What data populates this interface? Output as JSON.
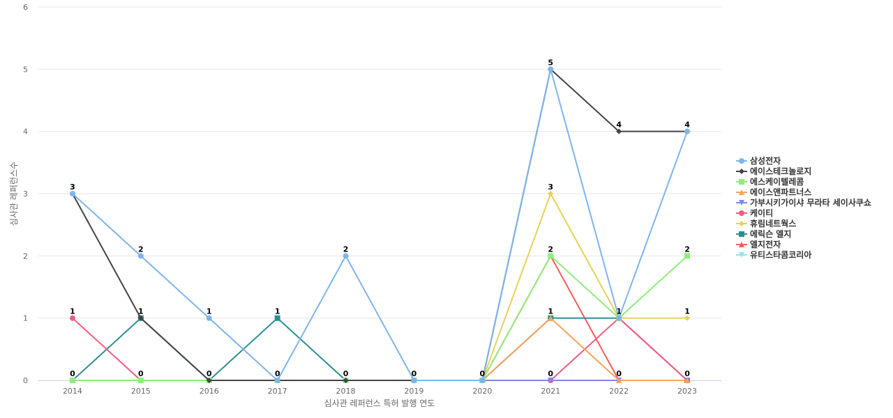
{
  "chart_data": {
    "type": "line",
    "title": "",
    "xlabel": "심사관 레퍼런스 특허 발행 연도",
    "ylabel": "심사관 레퍼런스수",
    "categories": [
      "2014",
      "2015",
      "2016",
      "2017",
      "2018",
      "2019",
      "2020",
      "2021",
      "2022",
      "2023"
    ],
    "ylim": [
      0,
      6
    ],
    "yticks": [
      0,
      1,
      2,
      3,
      4,
      5,
      6
    ],
    "grid": "horizontal",
    "legend": "right",
    "top_labels": [
      "3",
      "2",
      "1",
      "1",
      "2",
      "0",
      "0",
      "5",
      "4",
      "4"
    ],
    "annotations": [
      {
        "x": "2014",
        "y": 1,
        "text": "1"
      },
      {
        "x": "2014",
        "y": 0,
        "text": "0"
      },
      {
        "x": "2015",
        "y": 1,
        "text": "1"
      },
      {
        "x": "2015",
        "y": 0,
        "text": "0"
      },
      {
        "x": "2016",
        "y": 0,
        "text": "0"
      },
      {
        "x": "2017",
        "y": 0,
        "text": "0"
      },
      {
        "x": "2018",
        "y": 0,
        "text": "0"
      },
      {
        "x": "2021",
        "y": 3,
        "text": "3"
      },
      {
        "x": "2021",
        "y": 2,
        "text": "2"
      },
      {
        "x": "2021",
        "y": 1,
        "text": "1"
      },
      {
        "x": "2021",
        "y": 0,
        "text": "0"
      },
      {
        "x": "2022",
        "y": 1,
        "text": "1"
      },
      {
        "x": "2022",
        "y": 0,
        "text": "0"
      },
      {
        "x": "2023",
        "y": 2,
        "text": "2"
      },
      {
        "x": "2023",
        "y": 1,
        "text": "1"
      },
      {
        "x": "2023",
        "y": 0,
        "text": "0"
      }
    ],
    "series": [
      {
        "name": "삼성전자",
        "color": "#7cb5ec",
        "marker": "circle",
        "values": [
          3,
          2,
          1,
          0,
          2,
          0,
          0,
          5,
          1,
          4
        ]
      },
      {
        "name": "에이스테크놀로지",
        "color": "#434348",
        "marker": "diamond",
        "values": [
          3,
          1,
          0,
          0,
          0,
          0,
          0,
          5,
          4,
          4
        ]
      },
      {
        "name": "에스케이텔레콤",
        "color": "#90ed7d",
        "marker": "square",
        "values": [
          0,
          0,
          0,
          0,
          0,
          0,
          0,
          2,
          1,
          2
        ]
      },
      {
        "name": "에이스앤파트너스",
        "color": "#f7a35c",
        "marker": "triangle",
        "values": [
          0,
          0,
          0,
          0,
          0,
          0,
          0,
          1,
          0,
          0
        ]
      },
      {
        "name": "가부시키가이샤 무라타 세이사쿠쇼",
        "color": "#8085e9",
        "marker": "triangle-down",
        "values": [
          0,
          0,
          0,
          0,
          0,
          0,
          0,
          0,
          0,
          0
        ]
      },
      {
        "name": "케이티",
        "color": "#f15c80",
        "marker": "circle",
        "values": [
          1,
          0,
          0,
          0,
          0,
          0,
          0,
          0,
          1,
          0
        ]
      },
      {
        "name": "휴림네트웍스",
        "color": "#e4d354",
        "marker": "diamond",
        "values": [
          0,
          0,
          0,
          0,
          0,
          0,
          0,
          3,
          1,
          1
        ]
      },
      {
        "name": "에릭슨 엘지",
        "color": "#2b908f",
        "marker": "square",
        "values": [
          0,
          1,
          0,
          1,
          0,
          0,
          0,
          1,
          1,
          0
        ]
      },
      {
        "name": "엘지전자",
        "color": "#f45b5b",
        "marker": "triangle",
        "values": [
          0,
          0,
          0,
          0,
          0,
          0,
          0,
          2,
          0,
          0
        ]
      },
      {
        "name": "유티스타콤코리아",
        "color": "#91e8e1",
        "marker": "triangle-down",
        "values": [
          0,
          0,
          0,
          0,
          0,
          0,
          0,
          0,
          0,
          0
        ]
      }
    ]
  }
}
